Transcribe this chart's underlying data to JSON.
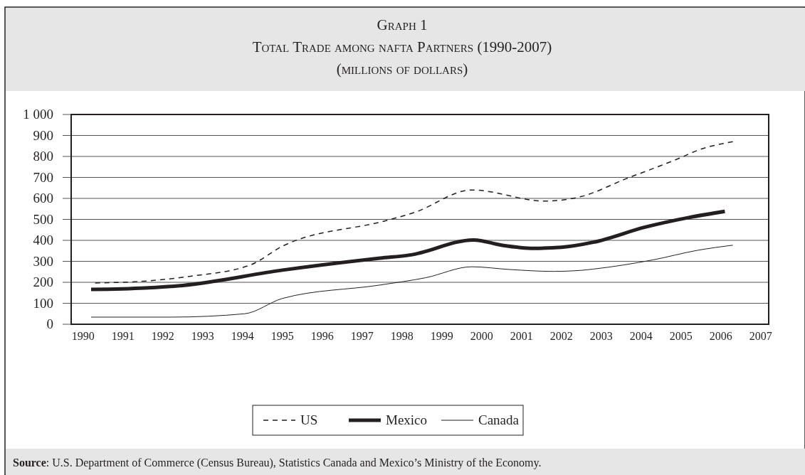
{
  "chart_data": {
    "type": "line",
    "title": "Graph 1",
    "subtitle": "Total Trade among nafta Partners (1990-2007)\n(millions of dollars)",
    "annotations": [
      "Source: U.S. Department of Commerce (Census Bureau), Statistics Canada and Mexico’s Ministry of the Economy."
    ],
    "xlim": [
      1989.7,
      2007.2
    ],
    "xticks": [
      1990,
      1991,
      1992,
      1993,
      1994,
      1995,
      1996,
      1997,
      1998,
      1999,
      2000,
      2001,
      2002,
      2003,
      2004,
      2005,
      2006,
      2007
    ],
    "ylim": [
      0,
      1000
    ],
    "yticks": [
      0,
      100,
      200,
      300,
      400,
      500,
      600,
      700,
      800,
      900,
      {
        "value": 1000,
        "label": "1 000"
      }
    ],
    "grid": "y",
    "legend": "bottom",
    "series": [
      {
        "name": "US",
        "color": "#231f20",
        "line_style": "dashed",
        "x": [
          1990.3,
          1991.5,
          1992.7,
          1994.2,
          1995.0,
          1997.6,
          1998.3,
          1999.75,
          2001.6,
          2002.5,
          2003.6,
          2005.0,
          2005.4,
          2006.3
        ],
        "values": [
          197,
          205,
          229,
          283,
          372,
          494,
          532,
          640,
          587,
          609,
          692,
          795,
          828,
          870
        ]
      },
      {
        "name": "Mexico",
        "color": "#231f20",
        "line_style": "solid",
        "x": [
          1990.2,
          1991.55,
          1992.5,
          1995.0,
          1997.45,
          1998.2,
          1999.8,
          2000.5,
          2001.3,
          2002.0,
          2002.8,
          2004.1,
          2005.2,
          2006.1
        ],
        "values": [
          166,
          173,
          185,
          258,
          315,
          330,
          402,
          377,
          362,
          367,
          391,
          463,
          509,
          538
        ]
      },
      {
        "name": "Canada",
        "color": "#231f20",
        "line_style": "solid",
        "x": [
          1990.2,
          1992.2,
          1994.05,
          1995.0,
          1997.45,
          1998.6,
          1999.75,
          2000.7,
          2001.8,
          2002.5,
          2002.8,
          2004.3,
          2005.4,
          2006.3
        ],
        "values": [
          34,
          34,
          50,
          123,
          187,
          222,
          274,
          261,
          252,
          257,
          263,
          307,
          352,
          377
        ]
      }
    ]
  }
}
